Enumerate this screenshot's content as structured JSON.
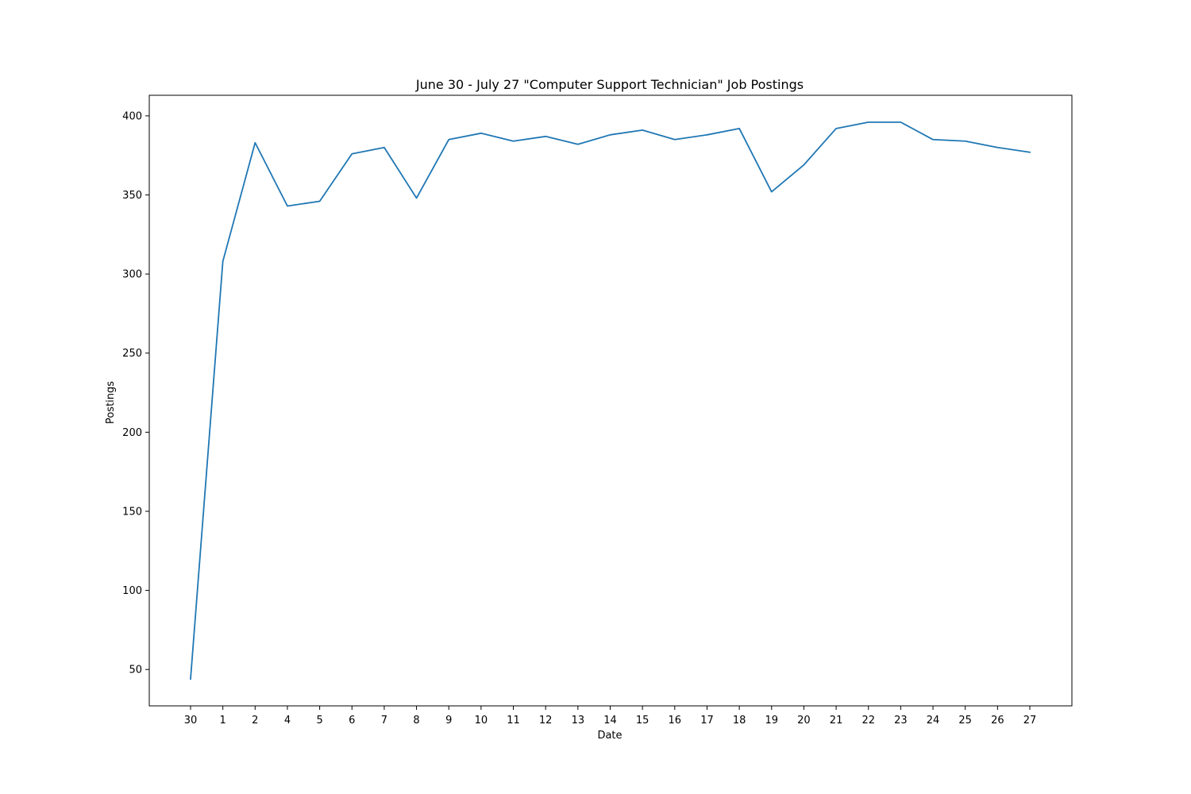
{
  "chart_data": {
    "type": "line",
    "title": "June 30 - July 27 \"Computer Support Technician\" Job Postings",
    "xlabel": "Date",
    "ylabel": "Postings",
    "categories": [
      "30",
      "1",
      "2",
      "4",
      "5",
      "6",
      "7",
      "8",
      "9",
      "10",
      "11",
      "12",
      "13",
      "14",
      "15",
      "16",
      "17",
      "18",
      "19",
      "20",
      "21",
      "22",
      "23",
      "24",
      "25",
      "26",
      "27"
    ],
    "series": [
      {
        "values": [
          44,
          308,
          383,
          343,
          346,
          376,
          380,
          348,
          385,
          389,
          384,
          387,
          382,
          388,
          391,
          385,
          388,
          392,
          352,
          369,
          392,
          396,
          396,
          385,
          384,
          380,
          377
        ],
        "color": "#1f77b4"
      }
    ],
    "yticks": [
      50,
      100,
      150,
      200,
      250,
      300,
      350,
      400
    ],
    "ylim": [
      27,
      413
    ],
    "grid": false,
    "legend": "none"
  }
}
